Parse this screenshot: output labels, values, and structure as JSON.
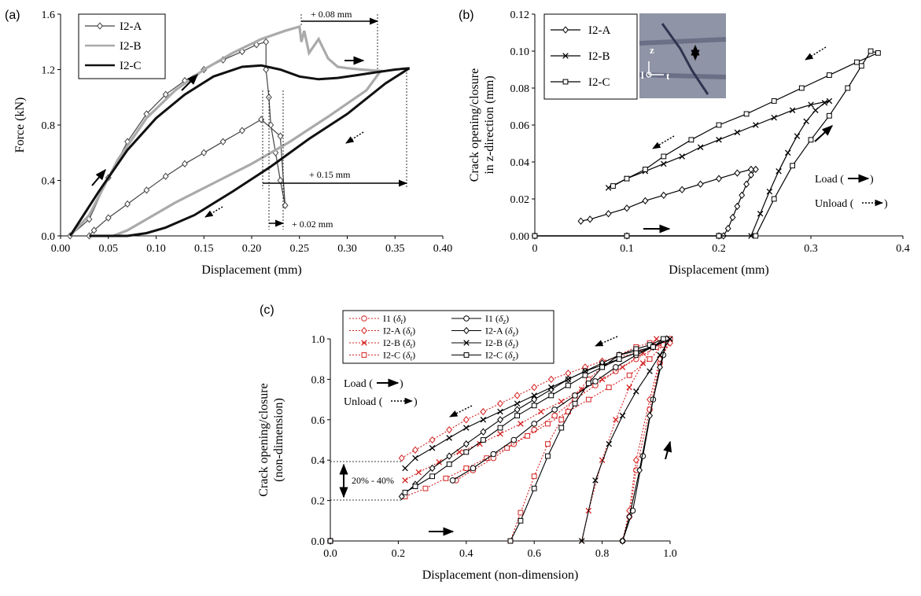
{
  "chart_data": [
    {
      "panel": "(a)",
      "type": "line",
      "xlabel": "Displacement (mm)",
      "ylabel": "Force (kN)",
      "xlim": [
        0,
        0.4
      ],
      "ylim": [
        0,
        1.6
      ],
      "xticks": [
        "0.00",
        "0.05",
        "0.10",
        "0.15",
        "0.20",
        "0.25",
        "0.30",
        "0.35",
        "0.40"
      ],
      "yticks": [
        "0.0",
        "0.4",
        "0.8",
        "1.2",
        "1.6"
      ],
      "legend_position": "top-left",
      "series": [
        {
          "name": "I2-A",
          "color": "#444444",
          "marker": "diamond",
          "style": "solid",
          "x": [
            0.01,
            0.03,
            0.05,
            0.07,
            0.09,
            0.11,
            0.13,
            0.15,
            0.17,
            0.19,
            0.205,
            0.215,
            0.215,
            0.218,
            0.22,
            0.225,
            0.23,
            0.235,
            0.235,
            0.23,
            0.21,
            0.19,
            0.17,
            0.15,
            0.13,
            0.11,
            0.09,
            0.07,
            0.05,
            0.035,
            0.03
          ],
          "y": [
            0.0,
            0.12,
            0.42,
            0.68,
            0.88,
            1.02,
            1.12,
            1.2,
            1.27,
            1.33,
            1.38,
            1.4,
            1.2,
            1.0,
            0.8,
            0.6,
            0.4,
            0.22,
            0.22,
            0.72,
            0.84,
            0.76,
            0.68,
            0.6,
            0.52,
            0.43,
            0.33,
            0.23,
            0.13,
            0.04,
            0.0
          ]
        },
        {
          "name": "I2-B",
          "color": "#aaaaaa",
          "marker": "none",
          "style": "solid",
          "x": [
            0.01,
            0.03,
            0.06,
            0.09,
            0.12,
            0.15,
            0.18,
            0.21,
            0.235,
            0.25,
            0.252,
            0.255,
            0.26,
            0.27,
            0.28,
            0.29,
            0.3,
            0.315,
            0.335,
            0.32,
            0.28,
            0.24,
            0.2,
            0.16,
            0.12,
            0.09,
            0.07,
            0.055
          ],
          "y": [
            0.0,
            0.15,
            0.55,
            0.85,
            1.05,
            1.2,
            1.32,
            1.42,
            1.48,
            1.51,
            1.4,
            1.48,
            1.32,
            1.42,
            1.28,
            1.22,
            1.21,
            1.2,
            1.19,
            1.05,
            0.86,
            0.68,
            0.52,
            0.38,
            0.24,
            0.12,
            0.04,
            0.0
          ]
        },
        {
          "name": "I2-C",
          "color": "#111111",
          "marker": "none",
          "style": "solid",
          "x": [
            0.01,
            0.04,
            0.07,
            0.1,
            0.13,
            0.16,
            0.19,
            0.21,
            0.23,
            0.25,
            0.27,
            0.29,
            0.31,
            0.33,
            0.35,
            0.365,
            0.34,
            0.3,
            0.26,
            0.22,
            0.18,
            0.14,
            0.11,
            0.09,
            0.07,
            0.05,
            0.03
          ],
          "y": [
            0.0,
            0.32,
            0.62,
            0.85,
            1.02,
            1.15,
            1.22,
            1.23,
            1.2,
            1.15,
            1.13,
            1.14,
            1.16,
            1.18,
            1.2,
            1.21,
            1.1,
            0.88,
            0.7,
            0.5,
            0.32,
            0.15,
            0.06,
            0.02,
            0.0,
            0.0,
            0.0
          ]
        }
      ],
      "annotations": [
        "+ 0.08 mm",
        "+ 0.15 mm",
        "+ 0.02 mm"
      ]
    },
    {
      "panel": "(b)",
      "type": "line",
      "xlabel": "Displacement (mm)",
      "ylabel_lines": [
        "Crack opening/closure",
        "in z-direction (mm)"
      ],
      "xlim": [
        0,
        0.4
      ],
      "ylim": [
        0,
        0.12
      ],
      "xticks": [
        "0",
        "0.1",
        "0.2",
        "0.3",
        "0.4"
      ],
      "yticks": [
        "0.00",
        "0.02",
        "0.04",
        "0.06",
        "0.08",
        "0.10",
        "0.12"
      ],
      "legend_position": "top-left",
      "inset_labels": {
        "z": "z",
        "l": "l",
        "t": "t"
      },
      "load_label": "Load (",
      "unload_label": "Unload (",
      "series": [
        {
          "name": "I2-A",
          "marker": "diamond",
          "x": [
            0.0,
            0.1,
            0.2,
            0.205,
            0.21,
            0.215,
            0.22,
            0.225,
            0.23,
            0.235,
            0.24,
            0.235,
            0.22,
            0.2,
            0.18,
            0.16,
            0.14,
            0.12,
            0.1,
            0.08,
            0.06,
            0.05
          ],
          "y": [
            0.0,
            0.0,
            0.0,
            0.0,
            0.004,
            0.01,
            0.016,
            0.022,
            0.028,
            0.033,
            0.036,
            0.036,
            0.034,
            0.031,
            0.028,
            0.025,
            0.022,
            0.019,
            0.015,
            0.012,
            0.009,
            0.008
          ]
        },
        {
          "name": "I2-B",
          "marker": "x",
          "x": [
            0.0,
            0.1,
            0.2,
            0.235,
            0.245,
            0.255,
            0.265,
            0.275,
            0.285,
            0.295,
            0.305,
            0.315,
            0.32,
            0.3,
            0.28,
            0.26,
            0.24,
            0.22,
            0.2,
            0.18,
            0.16,
            0.14,
            0.12,
            0.1,
            0.08
          ],
          "y": [
            0.0,
            0.0,
            0.0,
            0.0,
            0.012,
            0.024,
            0.035,
            0.045,
            0.054,
            0.062,
            0.068,
            0.072,
            0.073,
            0.071,
            0.068,
            0.064,
            0.06,
            0.056,
            0.052,
            0.048,
            0.043,
            0.039,
            0.035,
            0.031,
            0.026
          ]
        },
        {
          "name": "I2-C",
          "marker": "square",
          "x": [
            0.0,
            0.1,
            0.2,
            0.2,
            0.24,
            0.26,
            0.28,
            0.3,
            0.32,
            0.34,
            0.355,
            0.365,
            0.373,
            0.35,
            0.32,
            0.29,
            0.26,
            0.23,
            0.2,
            0.17,
            0.14,
            0.12,
            0.1,
            0.085
          ],
          "y": [
            0.0,
            0.0,
            0.0,
            0.0,
            0.0,
            0.02,
            0.038,
            0.052,
            0.065,
            0.08,
            0.092,
            0.1,
            0.099,
            0.094,
            0.087,
            0.08,
            0.073,
            0.066,
            0.06,
            0.052,
            0.043,
            0.036,
            0.031,
            0.027
          ]
        }
      ]
    },
    {
      "panel": "(c)",
      "type": "line",
      "xlabel": "Displacement (non-dimension)",
      "ylabel_lines": [
        "Crack opening/closure",
        "(non-dimension)"
      ],
      "xlim": [
        0,
        1.0
      ],
      "ylim": [
        0,
        1.0
      ],
      "xticks": [
        "0.0",
        "0.2",
        "0.4",
        "0.6",
        "0.8",
        "1.0"
      ],
      "yticks": [
        "0.0",
        "0.2",
        "0.4",
        "0.6",
        "0.8",
        "1.0"
      ],
      "legend_position": "top-left",
      "load_label": "Load (",
      "unload_label": "Unload (",
      "range_label": "20% - 40%",
      "series": [
        {
          "name": "I1",
          "sub": "t",
          "color": "#d42020",
          "style": "dotted",
          "marker": "circle",
          "x": [
            0.0,
            0.86,
            0.88,
            0.9,
            0.94,
            0.97,
            1.0,
            0.96,
            0.9,
            0.84,
            0.78,
            0.72,
            0.66,
            0.6,
            0.54,
            0.48,
            0.42,
            0.37
          ],
          "y": [
            0.0,
            0.0,
            0.12,
            0.35,
            0.65,
            0.88,
            1.0,
            0.96,
            0.9,
            0.84,
            0.77,
            0.7,
            0.62,
            0.55,
            0.48,
            0.41,
            0.35,
            0.3
          ]
        },
        {
          "name": "I2-A",
          "sub": "t",
          "color": "#d42020",
          "style": "dotted",
          "marker": "diamond",
          "x": [
            0.0,
            0.86,
            0.88,
            0.9,
            0.94,
            0.97,
            1.0,
            0.95,
            0.9,
            0.85,
            0.8,
            0.75,
            0.7,
            0.65,
            0.6,
            0.55,
            0.5,
            0.45,
            0.4,
            0.35,
            0.3,
            0.25,
            0.21
          ],
          "y": [
            0.0,
            0.0,
            0.15,
            0.4,
            0.7,
            0.9,
            0.98,
            0.96,
            0.93,
            0.91,
            0.89,
            0.86,
            0.83,
            0.8,
            0.76,
            0.72,
            0.68,
            0.64,
            0.6,
            0.55,
            0.5,
            0.45,
            0.41
          ]
        },
        {
          "name": "I2-B",
          "sub": "t",
          "color": "#d42020",
          "style": "dotted",
          "marker": "x",
          "x": [
            0.0,
            0.74,
            0.76,
            0.8,
            0.84,
            0.88,
            0.92,
            0.96,
            0.92,
            0.86,
            0.8,
            0.74,
            0.68,
            0.62,
            0.56,
            0.5,
            0.44,
            0.38,
            0.32,
            0.26,
            0.22
          ],
          "y": [
            0.0,
            0.0,
            0.15,
            0.4,
            0.6,
            0.76,
            0.88,
            1.0,
            0.93,
            0.86,
            0.8,
            0.75,
            0.69,
            0.64,
            0.58,
            0.53,
            0.48,
            0.44,
            0.39,
            0.34,
            0.3
          ]
        },
        {
          "name": "I2-C",
          "sub": "t",
          "color": "#d42020",
          "style": "dotted",
          "marker": "square",
          "x": [
            0.0,
            0.53,
            0.56,
            0.6,
            0.64,
            0.68,
            0.72,
            0.76,
            0.8,
            0.85,
            0.9,
            0.94,
            0.98,
            0.94,
            0.88,
            0.82,
            0.76,
            0.7,
            0.64,
            0.58,
            0.52,
            0.46,
            0.4,
            0.34,
            0.28,
            0.22
          ],
          "y": [
            0.0,
            0.0,
            0.14,
            0.32,
            0.48,
            0.6,
            0.72,
            0.8,
            0.86,
            0.92,
            0.96,
            0.98,
            0.97,
            0.9,
            0.82,
            0.76,
            0.7,
            0.64,
            0.58,
            0.52,
            0.46,
            0.41,
            0.36,
            0.31,
            0.26,
            0.22
          ]
        },
        {
          "name": "I1",
          "sub": "z",
          "color": "#000000",
          "style": "solid",
          "marker": "circle",
          "x": [
            0.0,
            0.86,
            0.89,
            0.92,
            0.95,
            0.98,
            0.99,
            0.95,
            0.9,
            0.84,
            0.78,
            0.72,
            0.66,
            0.6,
            0.54,
            0.48,
            0.42,
            0.36
          ],
          "y": [
            0.0,
            0.0,
            0.15,
            0.42,
            0.7,
            0.92,
            1.0,
            0.96,
            0.92,
            0.86,
            0.79,
            0.72,
            0.65,
            0.58,
            0.5,
            0.43,
            0.36,
            0.3
          ]
        },
        {
          "name": "I2-A",
          "sub": "z",
          "color": "#000000",
          "style": "solid",
          "marker": "diamond",
          "x": [
            0.0,
            0.86,
            0.88,
            0.91,
            0.94,
            0.97,
            0.99,
            0.95,
            0.9,
            0.85,
            0.8,
            0.75,
            0.7,
            0.65,
            0.6,
            0.55,
            0.5,
            0.45,
            0.4,
            0.35,
            0.3,
            0.25,
            0.21
          ],
          "y": [
            0.0,
            0.0,
            0.12,
            0.35,
            0.62,
            0.86,
            1.0,
            0.96,
            0.94,
            0.92,
            0.88,
            0.84,
            0.8,
            0.75,
            0.7,
            0.65,
            0.6,
            0.54,
            0.48,
            0.42,
            0.36,
            0.28,
            0.22
          ]
        },
        {
          "name": "I2-B",
          "sub": "z",
          "color": "#000000",
          "style": "solid",
          "marker": "x",
          "x": [
            0.0,
            0.74,
            0.78,
            0.82,
            0.86,
            0.9,
            0.94,
            0.97,
            1.0,
            0.95,
            0.9,
            0.85,
            0.8,
            0.75,
            0.7,
            0.65,
            0.6,
            0.55,
            0.5,
            0.45,
            0.4,
            0.35,
            0.3,
            0.25,
            0.22
          ],
          "y": [
            0.0,
            0.0,
            0.3,
            0.48,
            0.62,
            0.74,
            0.84,
            0.92,
            1.0,
            0.96,
            0.93,
            0.9,
            0.87,
            0.84,
            0.8,
            0.76,
            0.72,
            0.68,
            0.64,
            0.6,
            0.56,
            0.51,
            0.46,
            0.41,
            0.36
          ]
        },
        {
          "name": "I2-C",
          "sub": "z",
          "color": "#000000",
          "style": "solid",
          "marker": "square",
          "x": [
            0.0,
            0.53,
            0.56,
            0.6,
            0.64,
            0.68,
            0.72,
            0.76,
            0.8,
            0.85,
            0.9,
            0.94,
            0.98,
            0.95,
            0.9,
            0.85,
            0.8,
            0.75,
            0.7,
            0.65,
            0.6,
            0.55,
            0.5,
            0.45,
            0.4,
            0.35,
            0.3,
            0.25,
            0.22
          ],
          "y": [
            0.0,
            0.0,
            0.1,
            0.26,
            0.42,
            0.56,
            0.68,
            0.78,
            0.86,
            0.92,
            0.95,
            0.97,
            1.0,
            0.96,
            0.93,
            0.9,
            0.86,
            0.82,
            0.77,
            0.72,
            0.67,
            0.62,
            0.56,
            0.5,
            0.44,
            0.38,
            0.32,
            0.27,
            0.24
          ]
        }
      ]
    }
  ]
}
